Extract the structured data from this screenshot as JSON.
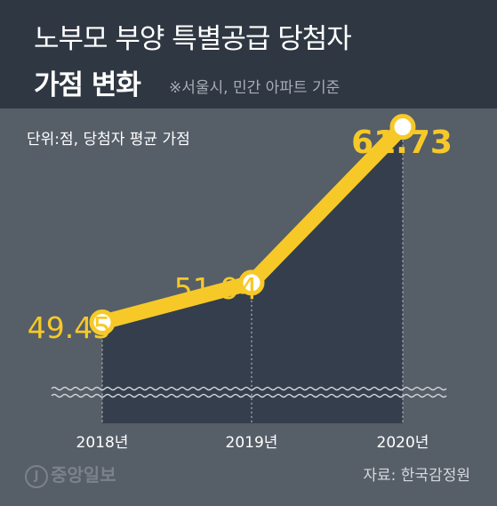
{
  "header": {
    "title_line1": "노부모 부양 특별공급 당첨자",
    "title_line2": "가점 변화",
    "note": "※서울시, 민간 아파트 기준"
  },
  "unit_label": "단위:점, 당첨자 평균 가점",
  "footer": {
    "logo_mark": "J",
    "logo_text": "중앙일보",
    "source": "자료: 한국감정원"
  },
  "colors": {
    "line": "#f6c928",
    "value_label": "#f6c928",
    "area": "#343e4c",
    "header_bg": "#2f3742",
    "page_bg": "#565e68"
  },
  "chart_data": {
    "type": "line",
    "categories": [
      "2018년",
      "2019년",
      "2020년"
    ],
    "values": [
      49.45,
      51.94,
      61.73
    ],
    "labels": [
      "49.45",
      "51.94",
      "61.73"
    ],
    "xlabel": "",
    "ylabel": "",
    "ylim": [
      44,
      64
    ],
    "grid": false,
    "legend": "none"
  }
}
